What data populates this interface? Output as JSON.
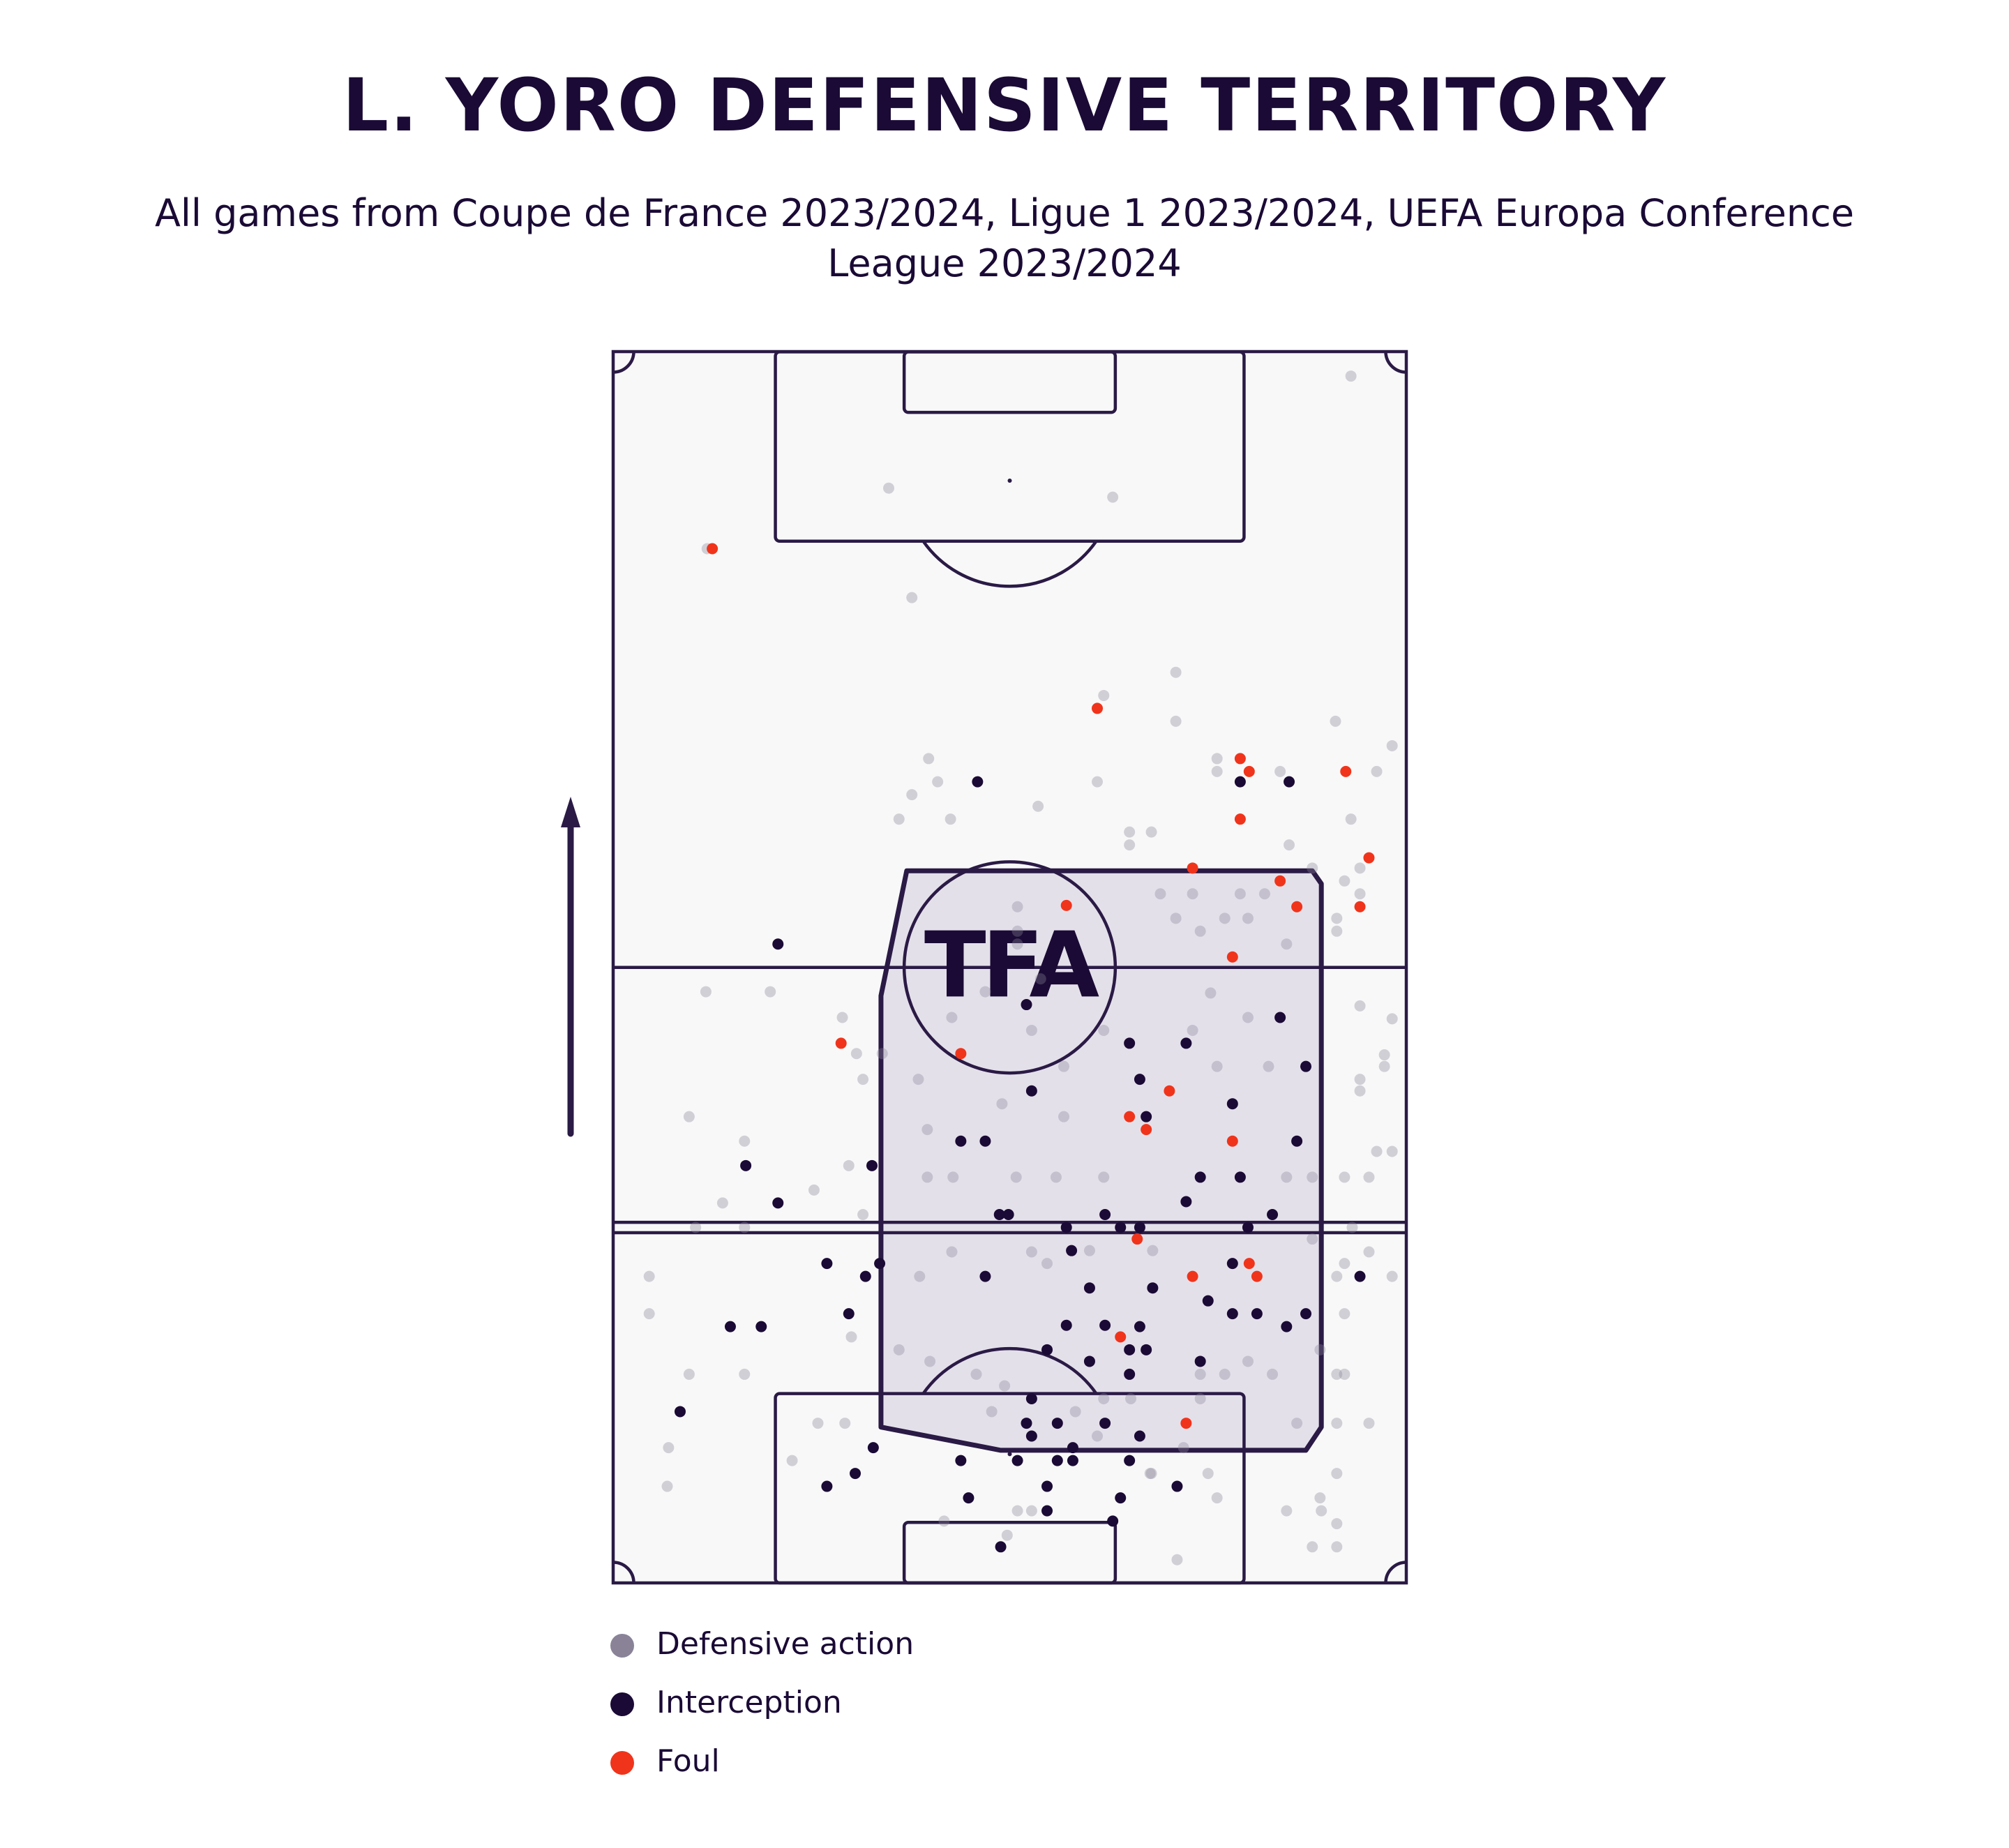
{
  "chart_data": {
    "type": "scatter",
    "title": "L. YORO DEFENSIVE TERRITORY",
    "subtitle": "All games from Coupe de France 2023/2024, Ligue 1 2023/2024, UEFA Europa Conference League 2023/2024",
    "watermark": "TFA",
    "xlim": [
      0,
      616
    ],
    "ylim": [
      0,
      956
    ],
    "series": [
      {
        "name": "Defensive action",
        "color": "#8a8398",
        "x": [
          573,
          214,
          388,
          73,
          232,
          437,
          381,
          437,
          561,
          605,
          245,
          469,
          469,
          518,
          593,
          252,
          376,
          232,
          330,
          573,
          222,
          262,
          401,
          418,
          401,
          525,
          543,
          580,
          568,
          580,
          425,
          450,
          487,
          506,
          437,
          456,
          475,
          493,
          562,
          523,
          562,
          314,
          314,
          314,
          72,
          122,
          289,
          332,
          580,
          605,
          464,
          493,
          450,
          325,
          263,
          178,
          189,
          209,
          381,
          599,
          599,
          580,
          580,
          509,
          469,
          350,
          237,
          194,
          302,
          59,
          102,
          244,
          350,
          605,
          593,
          568,
          587,
          543,
          523,
          381,
          344,
          313,
          264,
          244,
          183,
          156,
          85,
          194,
          102,
          64,
          574,
          543,
          587,
          568,
          562,
          605,
          28,
          263,
          325,
          370,
          238,
          419,
          337,
          28,
          568,
          549,
          562,
          568,
          102,
          59,
          185,
          222,
          246,
          282,
          456,
          475,
          493,
          512,
          456,
          587,
          562,
          531,
          443,
          462,
          418,
          43,
          42,
          139,
          159,
          180,
          562,
          549,
          550,
          523,
          562,
          562,
          543,
          438,
          469,
          306,
          257,
          325,
          314,
          417,
          402,
          381,
          304,
          294,
          359,
          376
        ],
        "y": [
          937,
          850,
          843,
          803,
          765,
          707,
          689,
          669,
          669,
          650,
          640,
          640,
          630,
          630,
          630,
          622,
          622,
          612,
          603,
          593,
          593,
          593,
          583,
          583,
          573,
          573,
          555,
          555,
          545,
          535,
          535,
          535,
          535,
          535,
          516,
          506,
          516,
          516,
          516,
          496,
          506,
          525,
          506,
          496,
          459,
          459,
          459,
          469,
          448,
          438,
          458,
          439,
          429,
          429,
          439,
          439,
          411,
          411,
          429,
          410,
          401,
          391,
          382,
          401,
          401,
          401,
          391,
          391,
          372,
          362,
          343,
          352,
          362,
          335,
          335,
          315,
          315,
          315,
          315,
          315,
          315,
          315,
          315,
          315,
          324,
          305,
          295,
          286,
          276,
          276,
          276,
          267,
          257,
          248,
          238,
          238,
          238,
          257,
          257,
          258,
          238,
          258,
          248,
          209,
          209,
          181,
          162,
          162,
          162,
          162,
          191,
          181,
          172,
          162,
          162,
          162,
          172,
          162,
          143,
          124,
          124,
          124,
          105,
          85,
          85,
          105,
          75,
          95,
          124,
          124,
          85,
          66,
          56,
          56,
          46,
          28,
          28,
          18,
          66,
          37,
          48,
          56,
          56,
          85,
          143,
          143,
          153,
          133,
          133,
          114
        ]
      },
      {
        "name": "Interception",
        "color": "#1a0a35",
        "x": [
          283,
          525,
          487,
          128,
          321,
          518,
          401,
          445,
          538,
          325,
          409,
          481,
          414,
          270,
          289,
          531,
          103,
          201,
          456,
          487,
          445,
          128,
          300,
          307,
          382,
          512,
          394,
          409,
          352,
          493,
          356,
          166,
          207,
          481,
          196,
          289,
          580,
          370,
          419,
          462,
          183,
          91,
          115,
          352,
          382,
          481,
          500,
          538,
          523,
          409,
          401,
          414,
          370,
          456,
          337,
          401,
          325,
          52,
          321,
          345,
          382,
          325,
          409,
          357,
          202,
          270,
          314,
          345,
          357,
          401,
          188,
          166,
          337,
          438,
          394,
          276,
          337,
          388,
          301
        ],
        "y": [
          622,
          622,
          622,
          496,
          449,
          439,
          419,
          419,
          401,
          382,
          391,
          372,
          362,
          343,
          343,
          343,
          324,
          324,
          315,
          315,
          296,
          295,
          286,
          286,
          286,
          286,
          276,
          276,
          276,
          276,
          258,
          248,
          248,
          248,
          238,
          238,
          238,
          229,
          229,
          219,
          209,
          199,
          199,
          200,
          200,
          209,
          209,
          209,
          199,
          199,
          181,
          181,
          172,
          172,
          181,
          162,
          143,
          133,
          124,
          124,
          124,
          114,
          114,
          105,
          105,
          95,
          95,
          95,
          95,
          95,
          85,
          75,
          75,
          75,
          66,
          66,
          56,
          48,
          28
        ]
      },
      {
        "name": "Foul",
        "color": "#f0341b",
        "x": [
          77,
          376,
          487,
          494,
          569,
          487,
          587,
          450,
          518,
          531,
          580,
          352,
          481,
          177,
          270,
          432,
          401,
          414,
          481,
          407,
          450,
          494,
          500,
          394,
          445
        ],
        "y": [
          803,
          679,
          640,
          630,
          630,
          593,
          563,
          555,
          545,
          525,
          525,
          526,
          486,
          419,
          411,
          382,
          362,
          352,
          343,
          267,
          238,
          248,
          238,
          191,
          124
        ]
      }
    ]
  }
}
